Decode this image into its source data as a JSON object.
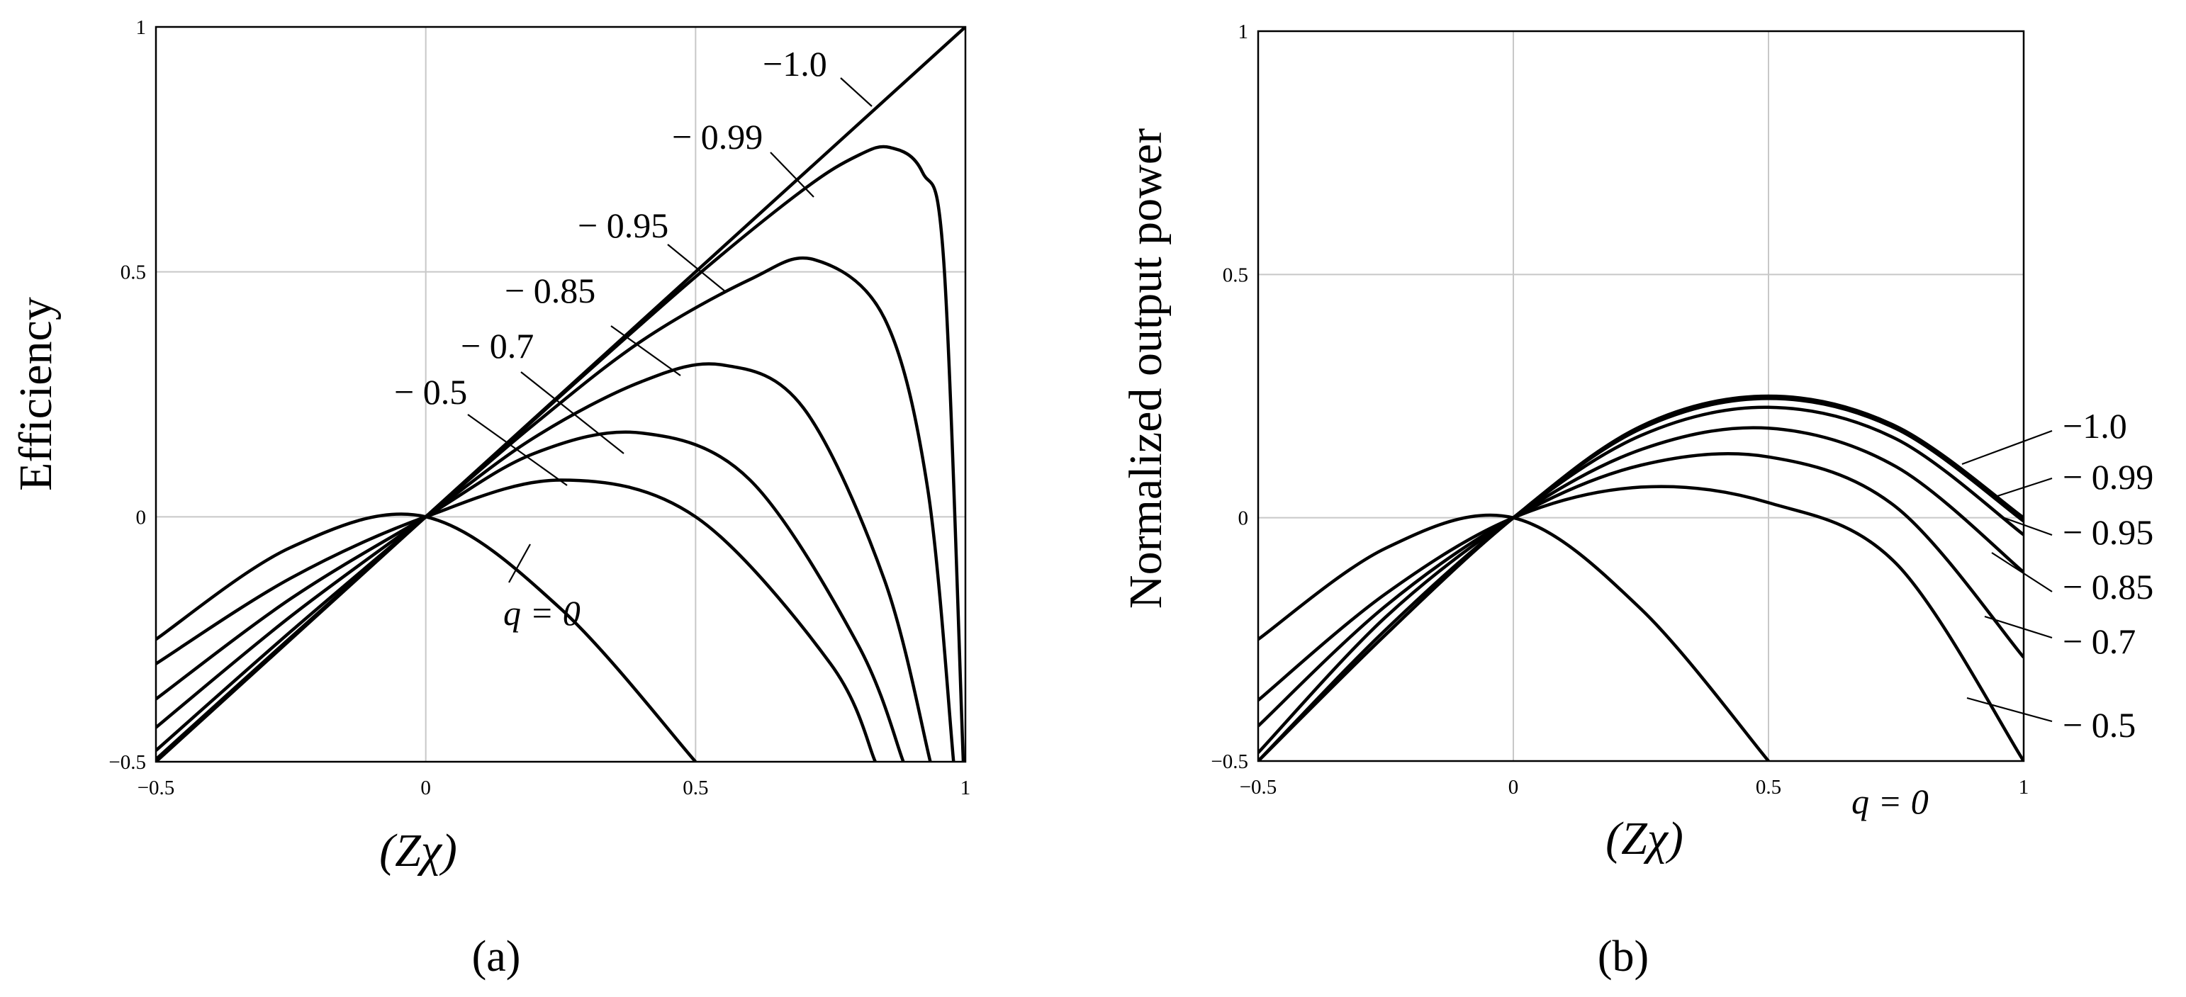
{
  "chart_data": [
    {
      "type": "line",
      "panel_label": "(a)",
      "xlabel": "(Zχ)",
      "ylabel": "Efficiency",
      "xlim": [
        -0.5,
        1
      ],
      "ylim": [
        -0.5,
        1
      ],
      "x_ticks": [
        "−0.5",
        "0",
        "0.5",
        "1"
      ],
      "y_ticks": [
        "−0.5",
        "0",
        "0.5",
        "1"
      ],
      "grid": true,
      "series": [
        {
          "label": "q = 0",
          "x": [
            -0.5,
            -0.25,
            0,
            0.25,
            0.5
          ],
          "y": [
            -0.25,
            -0.0625,
            0,
            -0.1875,
            -0.5
          ]
        },
        {
          "label": "− 0.5",
          "x": [
            -0.5,
            -0.25,
            0,
            0.25,
            0.5,
            0.75,
            0.833
          ],
          "y": [
            -0.3,
            -0.125,
            0,
            0.075,
            0,
            -0.3,
            -0.5
          ]
        },
        {
          "label": "− 0.7",
          "x": [
            -0.5,
            -0.25,
            0,
            0.2,
            0.4,
            0.6,
            0.8,
            0.885
          ],
          "y": [
            -0.372,
            -0.167,
            0,
            0.129,
            0.171,
            0.076,
            -0.259,
            -0.5
          ]
        },
        {
          "label": "− 0.85",
          "x": [
            -0.5,
            -0.25,
            0,
            0.2,
            0.4,
            0.55,
            0.7,
            0.85,
            0.935
          ],
          "y": [
            -0.43,
            -0.203,
            0,
            0.161,
            0.276,
            0.31,
            0.222,
            -0.129,
            -0.5
          ]
        },
        {
          "label": "− 0.95",
          "x": [
            -0.5,
            -0.25,
            0,
            0.2,
            0.4,
            0.6,
            0.72,
            0.85,
            0.93,
            0.978
          ],
          "y": [
            -0.477,
            -0.234,
            0,
            0.188,
            0.359,
            0.484,
            0.525,
            0.405,
            0.058,
            -0.5
          ]
        },
        {
          "label": "− 0.99",
          "x": [
            -0.5,
            -0.25,
            0,
            0.25,
            0.5,
            0.7,
            0.8,
            0.86,
            0.92,
            0.96,
            0.996
          ],
          "y": [
            -0.495,
            -0.246,
            0,
            0.247,
            0.49,
            0.668,
            0.737,
            0.754,
            0.704,
            0.52,
            -0.5
          ]
        },
        {
          "label": "−1.0",
          "x": [
            -0.5,
            1
          ],
          "y": [
            -0.5,
            1
          ]
        }
      ]
    },
    {
      "type": "line",
      "panel_label": "(b)",
      "xlabel": "(Zχ)",
      "ylabel": "Normalized output power",
      "xlim": [
        -0.5,
        1
      ],
      "ylim": [
        -0.5,
        1
      ],
      "x_ticks": [
        "−0.5",
        "0",
        "0.5",
        "1"
      ],
      "y_ticks": [
        "−0.5",
        "0",
        "0.5",
        "1"
      ],
      "grid": true,
      "series": [
        {
          "label": "q = 0",
          "x": [
            -0.5,
            -0.25,
            0,
            0.25,
            0.5
          ],
          "y": [
            -0.25,
            -0.0625,
            0,
            -0.1875,
            -0.5
          ]
        },
        {
          "label": "− 0.5",
          "x": [
            -0.5,
            -0.25,
            0,
            0.25,
            0.5,
            0.75,
            1
          ],
          "y": [
            -0.375,
            -0.156,
            0,
            0.063,
            0.031,
            -0.094,
            -0.5
          ]
        },
        {
          "label": "− 0.7",
          "x": [
            -0.5,
            -0.25,
            0,
            0.25,
            0.5,
            0.75,
            1
          ],
          "y": [
            -0.428,
            -0.181,
            0,
            0.108,
            0.125,
            0.022,
            -0.287
          ]
        },
        {
          "label": "− 0.85",
          "x": [
            -0.5,
            -0.25,
            0,
            0.25,
            0.5,
            0.75,
            1
          ],
          "y": [
            -0.483,
            -0.204,
            0,
            0.14,
            0.184,
            0.105,
            -0.112
          ]
        },
        {
          "label": "− 0.95",
          "x": [
            -0.5,
            -0.25,
            0,
            0.25,
            0.5,
            0.75,
            1
          ],
          "y": [
            -0.5,
            -0.23,
            0,
            0.169,
            0.227,
            0.162,
            -0.035
          ]
        },
        {
          "label": "− 0.99",
          "x": [
            -0.5,
            -0.25,
            0,
            0.25,
            0.5,
            0.75,
            1
          ],
          "y": [
            -0.5,
            -0.24,
            0,
            0.183,
            0.245,
            0.183,
            -0.007
          ]
        },
        {
          "label": "−1.0",
          "x": [
            -0.5,
            -0.25,
            0,
            0.25,
            0.5,
            0.75,
            1
          ],
          "y": [
            -0.5,
            -0.24,
            0,
            0.188,
            0.25,
            0.188,
            0
          ]
        }
      ]
    }
  ]
}
